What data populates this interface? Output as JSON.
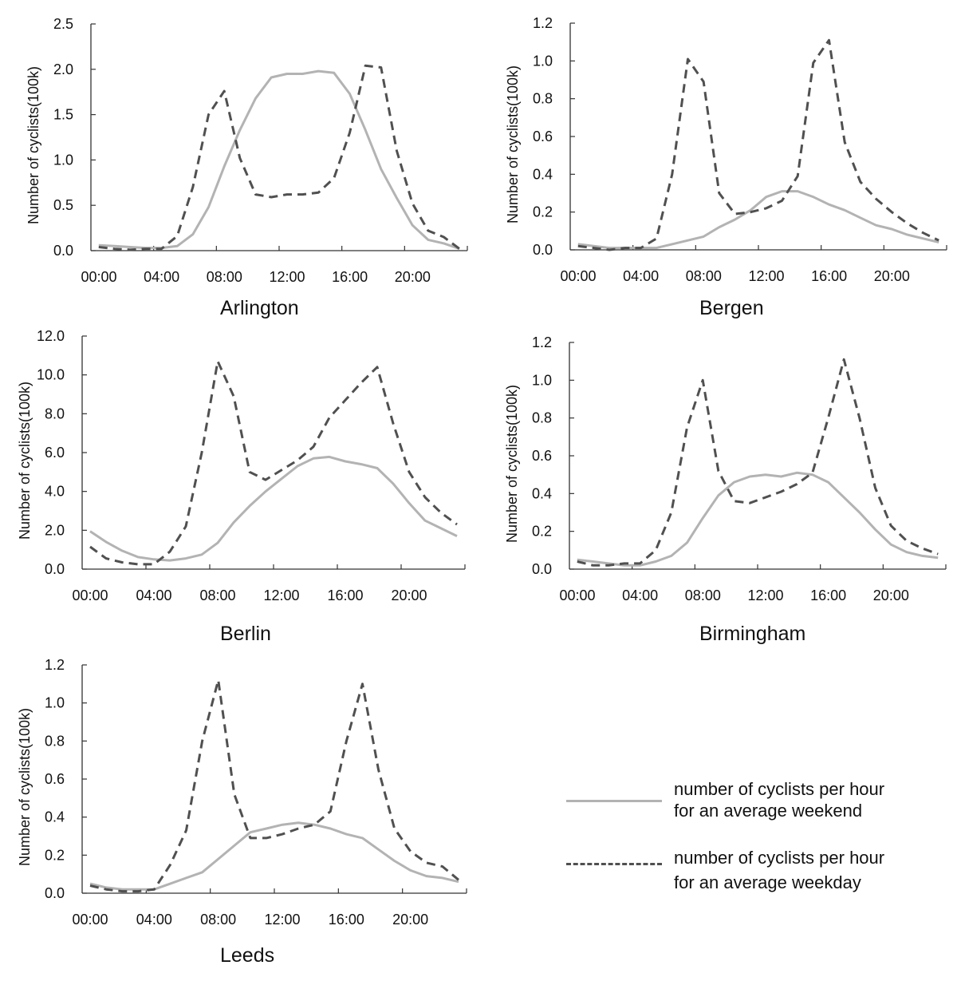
{
  "chart_data": [
    {
      "type": "line",
      "title": "Arlington",
      "xlabel": "",
      "ylabel": "Number of cyclists(100k)",
      "x": [
        0.5,
        1.5,
        2.5,
        3.5,
        4.5,
        5.5,
        6.5,
        7.5,
        8.5,
        9.5,
        10.5,
        11.5,
        12.5,
        13.5,
        14.5,
        15.5,
        16.5,
        17.5,
        18.5,
        19.5,
        20.5,
        21.5,
        22.5,
        23.5
      ],
      "xlim": [
        0,
        24
      ],
      "xtick_labels": [
        "00:00",
        "04:00",
        "08:00",
        "12:00",
        "16:00",
        "20:00"
      ],
      "xtick_hours": [
        0,
        4,
        8,
        12,
        16,
        20
      ],
      "ylim": [
        0,
        2.5
      ],
      "yticks": [
        0.0,
        0.5,
        1.0,
        1.5,
        2.0,
        2.5
      ],
      "ytick_labels": [
        "0.0",
        "0.5",
        "1.0",
        "1.5",
        "2.0",
        "2.5"
      ],
      "grid": false,
      "series": [
        {
          "name": "number of cyclists per hour for an average weekend",
          "style": "solid",
          "values": [
            0.06,
            0.05,
            0.04,
            0.03,
            0.03,
            0.05,
            0.18,
            0.48,
            0.93,
            1.33,
            1.68,
            1.91,
            1.95,
            1.95,
            1.98,
            1.96,
            1.73,
            1.33,
            0.9,
            0.58,
            0.28,
            0.12,
            0.08,
            0.02
          ]
        },
        {
          "name": "number of cyclists per hour for an average weekday",
          "style": "dashed",
          "values": [
            0.04,
            0.02,
            0.01,
            0.02,
            0.02,
            0.16,
            0.7,
            1.5,
            1.76,
            1.02,
            0.62,
            0.59,
            0.62,
            0.62,
            0.64,
            0.8,
            1.3,
            2.04,
            2.02,
            1.1,
            0.52,
            0.22,
            0.15,
            0.02
          ]
        }
      ]
    },
    {
      "type": "line",
      "title": "Bergen",
      "xlabel": "",
      "ylabel": "Number of cyclists(100k)",
      "x": [
        0.5,
        1.5,
        2.5,
        3.5,
        4.5,
        5.5,
        6.5,
        7.5,
        8.5,
        9.5,
        10.5,
        11.5,
        12.5,
        13.5,
        14.5,
        15.5,
        16.5,
        17.5,
        18.5,
        19.5,
        20.5,
        21.5,
        22.5,
        23.5
      ],
      "xlim": [
        0,
        24
      ],
      "xtick_labels": [
        "00:00",
        "04:00",
        "08:00",
        "12:00",
        "16:00",
        "20:00"
      ],
      "xtick_hours": [
        0,
        4,
        8,
        12,
        16,
        20
      ],
      "ylim": [
        0,
        1.2
      ],
      "yticks": [
        0.0,
        0.2,
        0.4,
        0.6,
        0.8,
        1.0,
        1.2
      ],
      "ytick_labels": [
        "0.0",
        "0.2",
        "0.4",
        "0.6",
        "0.8",
        "1.0",
        "1.2"
      ],
      "grid": false,
      "series": [
        {
          "name": "number of cyclists per hour for an average weekend",
          "style": "solid",
          "values": [
            0.03,
            0.02,
            0.01,
            0.01,
            0.01,
            0.01,
            0.03,
            0.05,
            0.07,
            0.12,
            0.16,
            0.21,
            0.28,
            0.31,
            0.31,
            0.28,
            0.24,
            0.21,
            0.17,
            0.13,
            0.11,
            0.08,
            0.06,
            0.04
          ]
        },
        {
          "name": "number of cyclists per hour for an average weekday",
          "style": "dashed",
          "values": [
            0.02,
            0.01,
            0.0,
            0.01,
            0.01,
            0.06,
            0.4,
            1.01,
            0.89,
            0.3,
            0.19,
            0.2,
            0.22,
            0.26,
            0.39,
            0.99,
            1.11,
            0.57,
            0.36,
            0.27,
            0.2,
            0.14,
            0.09,
            0.05
          ]
        }
      ]
    },
    {
      "type": "line",
      "title": "Berlin",
      "xlabel": "",
      "ylabel": "Number of cyclists(100k)",
      "x": [
        0.5,
        1.5,
        2.5,
        3.5,
        4.5,
        5.5,
        6.5,
        7.5,
        8.5,
        9.5,
        10.5,
        11.5,
        12.5,
        13.5,
        14.5,
        15.5,
        16.5,
        17.5,
        18.5,
        19.5,
        20.5,
        21.5,
        22.5,
        23.5
      ],
      "xlim": [
        0,
        24
      ],
      "xtick_labels": [
        "00:00",
        "04:00",
        "08:00",
        "12:00",
        "16:00",
        "20:00"
      ],
      "xtick_hours": [
        0,
        4,
        8,
        12,
        16,
        20
      ],
      "ylim": [
        0,
        12
      ],
      "yticks": [
        0,
        2,
        4,
        6,
        8,
        10,
        12
      ],
      "ytick_labels": [
        "0.0",
        "2.0",
        "4.0",
        "6.0",
        "8.0",
        "10.0",
        "12.0"
      ],
      "grid": false,
      "series": [
        {
          "name": "number of cyclists per hour for an average weekend",
          "style": "solid",
          "values": [
            1.95,
            1.4,
            0.95,
            0.62,
            0.5,
            0.45,
            0.55,
            0.75,
            1.35,
            2.4,
            3.25,
            4.0,
            4.65,
            5.3,
            5.7,
            5.78,
            5.55,
            5.4,
            5.2,
            4.4,
            3.4,
            2.5,
            2.1,
            1.7
          ]
        },
        {
          "name": "number of cyclists per hour for an average weekday",
          "style": "dashed",
          "values": [
            1.15,
            0.55,
            0.35,
            0.25,
            0.25,
            0.9,
            2.2,
            6.0,
            10.7,
            8.9,
            5.0,
            4.6,
            5.1,
            5.6,
            6.3,
            7.8,
            8.7,
            9.6,
            10.4,
            7.5,
            5.0,
            3.7,
            2.9,
            2.3
          ]
        }
      ]
    },
    {
      "type": "line",
      "title": "Birmingham",
      "xlabel": "",
      "ylabel": "Number of cyclists(100k)",
      "x": [
        0.5,
        1.5,
        2.5,
        3.5,
        4.5,
        5.5,
        6.5,
        7.5,
        8.5,
        9.5,
        10.5,
        11.5,
        12.5,
        13.5,
        14.5,
        15.5,
        16.5,
        17.5,
        18.5,
        19.5,
        20.5,
        21.5,
        22.5,
        23.5
      ],
      "xlim": [
        0,
        24
      ],
      "xtick_labels": [
        "00:00",
        "04:00",
        "08:00",
        "12:00",
        "16:00",
        "20:00"
      ],
      "xtick_hours": [
        0,
        4,
        8,
        12,
        16,
        20
      ],
      "ylim": [
        0,
        1.2
      ],
      "yticks": [
        0.0,
        0.2,
        0.4,
        0.6,
        0.8,
        1.0,
        1.2
      ],
      "ytick_labels": [
        "0.0",
        "0.2",
        "0.4",
        "0.6",
        "0.8",
        "1.0",
        "1.2"
      ],
      "grid": false,
      "series": [
        {
          "name": "number of cyclists per hour for an average weekend",
          "style": "solid",
          "values": [
            0.05,
            0.04,
            0.03,
            0.02,
            0.02,
            0.04,
            0.07,
            0.14,
            0.27,
            0.39,
            0.46,
            0.49,
            0.5,
            0.49,
            0.51,
            0.5,
            0.46,
            0.38,
            0.3,
            0.21,
            0.13,
            0.09,
            0.07,
            0.06
          ]
        },
        {
          "name": "number of cyclists per hour for an average weekday",
          "style": "dashed",
          "values": [
            0.04,
            0.02,
            0.02,
            0.03,
            0.03,
            0.1,
            0.3,
            0.75,
            1.0,
            0.52,
            0.36,
            0.35,
            0.38,
            0.41,
            0.45,
            0.51,
            0.8,
            1.11,
            0.8,
            0.43,
            0.23,
            0.15,
            0.11,
            0.08
          ]
        }
      ]
    },
    {
      "type": "line",
      "title": "Leeds",
      "xlabel": "",
      "ylabel": "Number of cyclists(100k)",
      "x": [
        0.5,
        1.5,
        2.5,
        3.5,
        4.5,
        5.5,
        6.5,
        7.5,
        8.5,
        9.5,
        10.5,
        11.5,
        12.5,
        13.5,
        14.5,
        15.5,
        16.5,
        17.5,
        18.5,
        19.5,
        20.5,
        21.5,
        22.5,
        23.5
      ],
      "xlim": [
        0,
        24
      ],
      "xtick_labels": [
        "00:00",
        "04:00",
        "08:00",
        "12:00",
        "16:00",
        "20:00"
      ],
      "xtick_hours": [
        0,
        4,
        8,
        12,
        16,
        20
      ],
      "ylim": [
        0,
        1.2
      ],
      "yticks": [
        0.0,
        0.2,
        0.4,
        0.6,
        0.8,
        1.0,
        1.2
      ],
      "ytick_labels": [
        "0.0",
        "0.2",
        "0.4",
        "0.6",
        "0.8",
        "1.0",
        "1.2"
      ],
      "grid": false,
      "series": [
        {
          "name": "number of cyclists per hour for an average weekend",
          "style": "solid",
          "values": [
            0.05,
            0.03,
            0.02,
            0.02,
            0.02,
            0.05,
            0.08,
            0.11,
            0.18,
            0.25,
            0.32,
            0.34,
            0.36,
            0.37,
            0.36,
            0.34,
            0.31,
            0.29,
            0.23,
            0.17,
            0.12,
            0.09,
            0.08,
            0.06
          ]
        },
        {
          "name": "number of cyclists per hour for an average weekday",
          "style": "dashed",
          "values": [
            0.04,
            0.02,
            0.01,
            0.01,
            0.02,
            0.15,
            0.33,
            0.8,
            1.12,
            0.52,
            0.29,
            0.29,
            0.31,
            0.34,
            0.36,
            0.43,
            0.8,
            1.1,
            0.65,
            0.34,
            0.22,
            0.16,
            0.14,
            0.07
          ]
        }
      ]
    }
  ],
  "legend": {
    "placement": "bottom-right",
    "items": [
      {
        "style": "solid",
        "line1": "number of cyclists per hour",
        "line2": "for an average weekend"
      },
      {
        "style": "dashed",
        "line1": "number of cyclists per hour",
        "line2": "for an average weekday"
      }
    ]
  },
  "colors": {
    "weekend": "#b3b3b3",
    "weekday": "#505050",
    "axis": "#333333"
  }
}
